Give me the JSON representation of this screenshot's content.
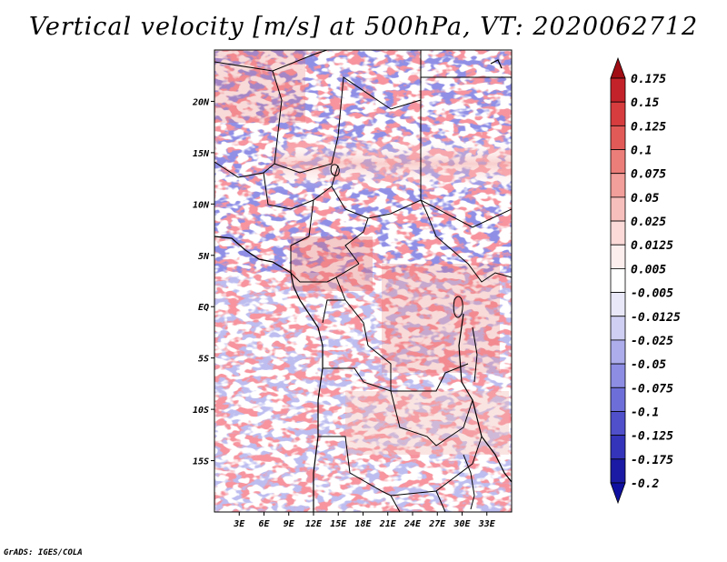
{
  "title": "Vertical velocity [m/s] at 500hPa, VT: 2020062712",
  "credit": "GrADS: IGES/COLA",
  "map": {
    "lon_range": [
      0,
      36
    ],
    "lat_range": [
      -20,
      25
    ],
    "lon_ticks": [
      "3E",
      "6E",
      "9E",
      "12E",
      "15E",
      "18E",
      "21E",
      "24E",
      "27E",
      "30E",
      "33E"
    ],
    "lat_ticks": [
      "20N",
      "15N",
      "10N",
      "5N",
      "EQ",
      "5S",
      "10S",
      "15S"
    ],
    "field": "vertical velocity",
    "level": "500hPa",
    "valid_time": "2020062712"
  },
  "colorbar": {
    "labels": [
      "0.175",
      "0.15",
      "0.125",
      "0.1",
      "0.075",
      "0.05",
      "0.025",
      "0.0125",
      "0.005",
      "-0.005",
      "-0.0125",
      "-0.025",
      "-0.05",
      "-0.075",
      "-0.1",
      "-0.125",
      "-0.175",
      "-0.2"
    ],
    "colors": [
      "#a00d14",
      "#c4222a",
      "#d63c3e",
      "#e25a58",
      "#ec7e7a",
      "#f29e9a",
      "#f7bfbc",
      "#fbdad8",
      "#fdeeee",
      "#ffffff",
      "#e8e8f8",
      "#cfcff3",
      "#adadec",
      "#8d8de4",
      "#6e6ed9",
      "#5050cb",
      "#3434bb",
      "#1a1aa4",
      "#1010a0"
    ]
  }
}
